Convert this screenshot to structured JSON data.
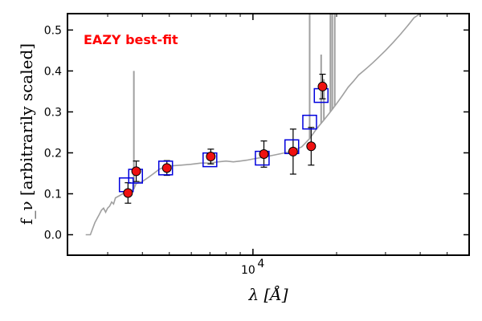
{
  "chart_data": {
    "type": "scatter",
    "title": "",
    "xlabel": "λ [Å]",
    "ylabel": "f_ν [arbitrarily scaled]",
    "xscale": "log",
    "xlim": [
      2150,
      60000
    ],
    "ylim": [
      -0.05,
      0.54
    ],
    "grid": false,
    "legend": "none",
    "annotation": {
      "text": "EAZY best-fit",
      "color": "#ff0000"
    },
    "x_ticks": [
      {
        "value": 10000,
        "base": "10",
        "exp": "4"
      }
    ],
    "y_ticks": [
      {
        "value": 0.0,
        "label": "0.0"
      },
      {
        "value": 0.1,
        "label": "0.1"
      },
      {
        "value": 0.2,
        "label": "0.2"
      },
      {
        "value": 0.3,
        "label": "0.3"
      },
      {
        "value": 0.4,
        "label": "0.4"
      },
      {
        "value": 0.5,
        "label": "0.5"
      }
    ],
    "colors": {
      "template": "#a0a0a0",
      "model": "#0000dd",
      "observed_fill": "#ee1111",
      "observed_edge": "#000000",
      "error_bar": "#000000"
    },
    "series": [
      {
        "role": "template-spectrum",
        "points": [
          [
            2500,
            0.0
          ],
          [
            2600,
            0.0
          ],
          [
            2700,
            0.03
          ],
          [
            2800,
            0.05
          ],
          [
            2850,
            0.06
          ],
          [
            2900,
            0.065
          ],
          [
            2950,
            0.055
          ],
          [
            3000,
            0.065
          ],
          [
            3050,
            0.07
          ],
          [
            3100,
            0.08
          ],
          [
            3150,
            0.075
          ],
          [
            3200,
            0.09
          ],
          [
            3300,
            0.095
          ],
          [
            3400,
            0.1
          ],
          [
            3500,
            0.105
          ],
          [
            3600,
            0.11
          ],
          [
            3650,
            0.108
          ],
          [
            3727,
            0.112
          ],
          [
            3800,
            0.125
          ],
          [
            4000,
            0.13
          ],
          [
            4200,
            0.14
          ],
          [
            4400,
            0.15
          ],
          [
            4600,
            0.16
          ],
          [
            4800,
            0.165
          ],
          [
            5000,
            0.168
          ],
          [
            5500,
            0.17
          ],
          [
            6000,
            0.172
          ],
          [
            6500,
            0.175
          ],
          [
            7000,
            0.175
          ],
          [
            7500,
            0.178
          ],
          [
            8000,
            0.18
          ],
          [
            8500,
            0.178
          ],
          [
            9000,
            0.18
          ],
          [
            9500,
            0.182
          ],
          [
            10000,
            0.185
          ],
          [
            11000,
            0.19
          ],
          [
            12000,
            0.195
          ],
          [
            13000,
            0.2
          ],
          [
            14000,
            0.205
          ],
          [
            15000,
            0.215
          ],
          [
            16000,
            0.235
          ],
          [
            17000,
            0.26
          ],
          [
            18000,
            0.28
          ],
          [
            19000,
            0.3
          ],
          [
            20000,
            0.32
          ],
          [
            21000,
            0.34
          ],
          [
            22000,
            0.36
          ],
          [
            23000,
            0.375
          ],
          [
            24000,
            0.39
          ],
          [
            25000,
            0.4
          ],
          [
            26000,
            0.41
          ],
          [
            27000,
            0.42
          ],
          [
            28000,
            0.43
          ],
          [
            30000,
            0.45
          ],
          [
            32000,
            0.47
          ],
          [
            34000,
            0.49
          ],
          [
            36000,
            0.51
          ],
          [
            38000,
            0.53
          ],
          [
            40000,
            0.545
          ]
        ],
        "emission_lines": [
          [
            3727,
            0.4
          ],
          [
            16000,
            0.56
          ],
          [
            17100,
            0.26
          ],
          [
            17600,
            0.44
          ],
          [
            18000,
            0.38
          ],
          [
            19000,
            0.56
          ],
          [
            19300,
            0.56
          ],
          [
            19700,
            0.56
          ]
        ]
      },
      {
        "role": "model-photometry",
        "points": [
          [
            3500,
            0.122
          ],
          [
            3780,
            0.143
          ],
          [
            4850,
            0.163
          ],
          [
            7000,
            0.183
          ],
          [
            10800,
            0.187
          ],
          [
            13800,
            0.215
          ],
          [
            16000,
            0.275
          ],
          [
            17600,
            0.34
          ]
        ]
      },
      {
        "role": "observed-photometry",
        "points": [
          {
            "x": 3550,
            "y": 0.102,
            "err": 0.025
          },
          {
            "x": 3800,
            "y": 0.155,
            "err": 0.025
          },
          {
            "x": 4900,
            "y": 0.163,
            "err": 0.018
          },
          {
            "x": 7050,
            "y": 0.191,
            "err": 0.018
          },
          {
            "x": 10950,
            "y": 0.197,
            "err": 0.032
          },
          {
            "x": 13950,
            "y": 0.203,
            "err": 0.055
          },
          {
            "x": 16200,
            "y": 0.216,
            "err": 0.046
          },
          {
            "x": 17800,
            "y": 0.362,
            "err": 0.03
          }
        ]
      }
    ]
  }
}
